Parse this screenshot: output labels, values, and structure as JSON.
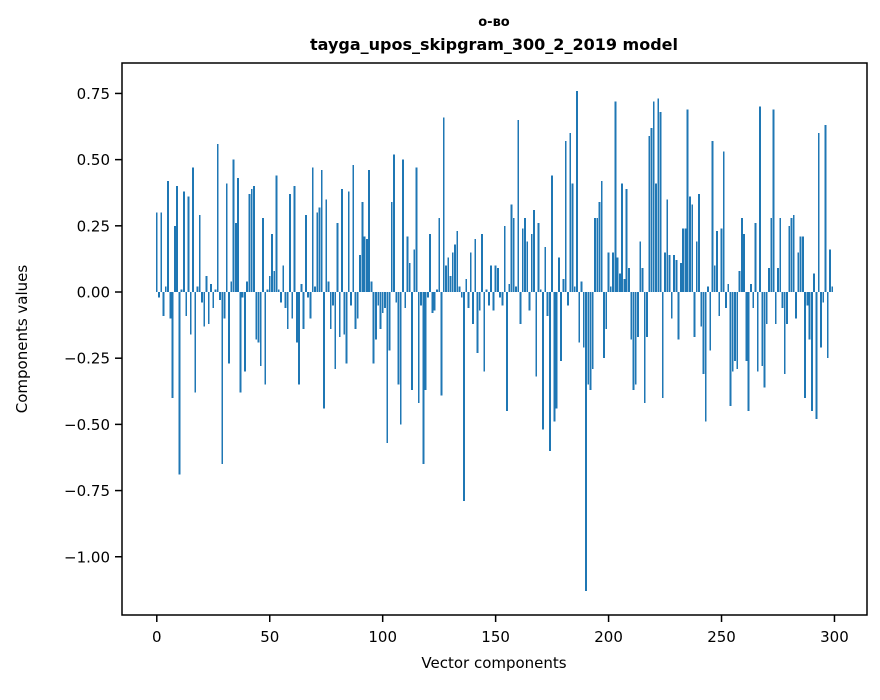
{
  "figure": {
    "title_line1": "о-во",
    "title_line2": "tayga_upos_skipgram_300_2_2019 model",
    "xlabel": "Vector components",
    "ylabel": "Components values",
    "bar_color": "#1f77b4",
    "background": "#ffffff",
    "axis_color": "#000000"
  },
  "chart_data": {
    "type": "bar",
    "title": "о-во",
    "subtitle": "tayga_upos_skipgram_300_2_2019 model",
    "xlabel": "Vector components",
    "ylabel": "Components values",
    "n_components": 300,
    "x_start": 0,
    "bar_width": 0.8,
    "xlim": [
      -15.4,
      314.4
    ],
    "ylim": [
      -1.22,
      0.865
    ],
    "x_ticks": [
      0,
      50,
      100,
      150,
      200,
      250,
      300
    ],
    "y_ticks": [
      0.75,
      0.5,
      0.25,
      0.0,
      -0.25,
      -0.5,
      -0.75,
      -1.0
    ],
    "grid": false,
    "legend": "none",
    "values": [
      0.3,
      -0.02,
      0.3,
      -0.09,
      0.02,
      0.42,
      -0.1,
      -0.4,
      0.25,
      0.4,
      -0.69,
      0.01,
      0.38,
      -0.09,
      0.36,
      -0.16,
      0.47,
      -0.38,
      0.02,
      0.29,
      -0.04,
      -0.13,
      0.06,
      -0.12,
      0.03,
      -0.06,
      0.01,
      0.56,
      -0.03,
      -0.65,
      -0.1,
      0.41,
      -0.27,
      0.04,
      0.5,
      0.26,
      0.43,
      -0.38,
      -0.02,
      -0.3,
      0.04,
      0.37,
      0.39,
      0.4,
      -0.18,
      -0.19,
      -0.28,
      0.28,
      -0.35,
      0.01,
      0.06,
      0.22,
      0.08,
      0.44,
      0.01,
      -0.04,
      0.1,
      -0.06,
      -0.14,
      0.37,
      -0.1,
      0.4,
      -0.19,
      -0.35,
      0.03,
      -0.14,
      0.29,
      -0.02,
      -0.1,
      0.47,
      0.02,
      0.3,
      0.32,
      0.46,
      -0.44,
      0.35,
      0.04,
      -0.14,
      -0.05,
      -0.29,
      0.26,
      -0.17,
      0.39,
      -0.16,
      -0.27,
      0.38,
      -0.05,
      0.48,
      -0.14,
      -0.1,
      0.14,
      0.34,
      0.21,
      0.2,
      0.46,
      0.04,
      -0.27,
      -0.18,
      -0.05,
      -0.14,
      -0.08,
      -0.06,
      -0.57,
      -0.22,
      0.34,
      0.52,
      -0.04,
      -0.35,
      -0.5,
      0.5,
      -0.06,
      0.21,
      0.11,
      -0.37,
      0.16,
      0.47,
      -0.42,
      -0.05,
      -0.65,
      -0.37,
      -0.02,
      0.22,
      -0.08,
      -0.07,
      0.01,
      0.28,
      -0.39,
      0.66,
      0.1,
      0.13,
      0.06,
      0.15,
      0.18,
      0.23,
      0.02,
      -0.02,
      -0.79,
      0.05,
      -0.06,
      0.15,
      -0.12,
      0.2,
      -0.23,
      -0.07,
      0.22,
      -0.3,
      0.01,
      -0.05,
      0.1,
      -0.07,
      0.1,
      0.09,
      -0.02,
      -0.05,
      0.25,
      -0.45,
      0.03,
      0.33,
      0.28,
      0.02,
      0.65,
      -0.12,
      0.24,
      0.28,
      0.19,
      -0.07,
      0.22,
      0.31,
      -0.32,
      0.26,
      0.01,
      -0.52,
      0.17,
      -0.09,
      -0.6,
      0.44,
      -0.49,
      -0.44,
      0.13,
      -0.26,
      0.05,
      0.57,
      -0.05,
      0.6,
      0.41,
      0.02,
      0.76,
      -0.19,
      0.04,
      -0.21,
      -1.13,
      -0.35,
      -0.37,
      -0.29,
      0.28,
      0.28,
      0.34,
      0.42,
      -0.25,
      -0.14,
      0.15,
      0.02,
      0.15,
      0.72,
      0.13,
      0.07,
      0.41,
      0.05,
      0.39,
      0.09,
      -0.18,
      -0.37,
      -0.35,
      -0.17,
      0.19,
      0.09,
      -0.42,
      -0.17,
      0.59,
      0.62,
      0.72,
      0.41,
      0.73,
      0.68,
      -0.4,
      0.15,
      0.35,
      0.14,
      -0.1,
      0.14,
      0.12,
      -0.18,
      0.11,
      0.24,
      0.24,
      0.69,
      0.36,
      0.33,
      -0.17,
      0.19,
      0.37,
      -0.13,
      -0.31,
      -0.49,
      0.02,
      -0.22,
      0.57,
      0.1,
      0.23,
      -0.09,
      0.24,
      0.53,
      -0.06,
      0.03,
      -0.43,
      -0.3,
      -0.26,
      -0.29,
      0.08,
      0.28,
      0.22,
      -0.26,
      -0.45,
      0.03,
      -0.06,
      0.26,
      -0.3,
      0.7,
      -0.28,
      -0.36,
      -0.12,
      0.09,
      0.28,
      0.69,
      -0.12,
      0.09,
      0.28,
      -0.06,
      -0.31,
      -0.12,
      0.25,
      0.28,
      0.29,
      -0.1,
      0.15,
      0.21,
      0.21,
      -0.4,
      -0.05,
      -0.18,
      -0.45,
      0.07,
      -0.48,
      0.6,
      -0.21,
      -0.04,
      0.63,
      -0.25,
      0.16,
      0.02
    ]
  }
}
